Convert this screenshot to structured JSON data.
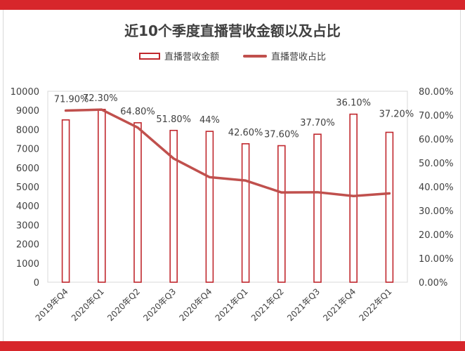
{
  "chart_data": {
    "type": "bar+line",
    "title": "近10个季度直播营收金额以及占比",
    "categories": [
      "2019年Q4",
      "2020年Q1",
      "2020年Q2",
      "2020年Q3",
      "2020年Q4",
      "2021年Q1",
      "2021年Q2",
      "2021年Q3",
      "2021年Q4",
      "2022年Q1"
    ],
    "series": [
      {
        "name": "直播营收金额",
        "kind": "bar",
        "axis": "left",
        "values": [
          8500,
          9050,
          8350,
          7950,
          7900,
          7250,
          7150,
          7750,
          8800,
          7850
        ]
      },
      {
        "name": "直播营收占比",
        "kind": "line",
        "axis": "right",
        "values": [
          71.9,
          72.3,
          64.8,
          51.8,
          44,
          42.6,
          37.6,
          37.7,
          36.1,
          37.2
        ],
        "labels": [
          "71.90%",
          "72.30%",
          "64.80%",
          "51.80%",
          "44%",
          "42.60%",
          "37.60%",
          "37.70%",
          "36.10%",
          "37.20%"
        ]
      }
    ],
    "y_left": {
      "min": 0,
      "max": 10000,
      "ticks": [
        "0",
        "1000",
        "2000",
        "3000",
        "4000",
        "5000",
        "6000",
        "7000",
        "8000",
        "9000",
        "10000"
      ]
    },
    "y_right": {
      "min": 0,
      "max": 80,
      "ticks": [
        "0.00%",
        "10.00%",
        "20.00%",
        "30.00%",
        "40.00%",
        "50.00%",
        "60.00%",
        "70.00%",
        "80.00%"
      ]
    },
    "grid": false,
    "legend_position": "top-center",
    "colors": {
      "bar_stroke": "#c0272d",
      "line": "#c0504d",
      "accent": "#d7262b"
    }
  }
}
